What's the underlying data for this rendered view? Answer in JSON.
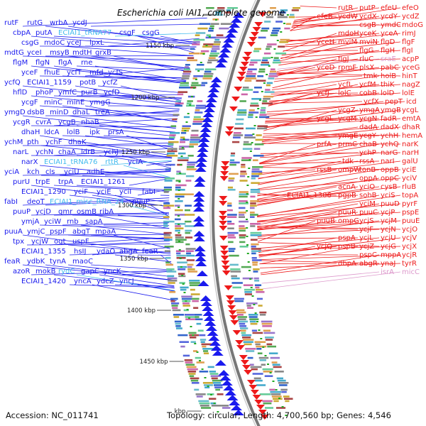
{
  "title": "Escherichia coli IAI1, complete genome",
  "footer": {
    "accession": "Accession: NC_011741",
    "topology": "Topology: circular; Length: 4,700,560 bp; Genes: 4,546"
  },
  "colors": {
    "left_genes": "#1a1aee",
    "right_genes": "#ee1a1a",
    "rna_left": "#44bbee",
    "rna_right": "#dd99cc",
    "backbone": "#888888",
    "ticks": "#22aa22"
  },
  "kbp_marks": [
    {
      "label": "1150 kbp"
    },
    {
      "label": "1200 kbp"
    },
    {
      "label": "1250 kbp"
    },
    {
      "label": "1300 kbp"
    },
    {
      "label": "1350 kbp"
    },
    {
      "label": "1400 kbp"
    },
    {
      "label": "1450 kbp"
    },
    {
      "label": "kbp"
    }
  ],
  "left_labels": [
    {
      "text": "rutF"
    },
    {
      "text": "rutG"
    },
    {
      "text": "wrbA"
    },
    {
      "text": "ycdJ"
    },
    {
      "text": "cbpA"
    },
    {
      "text": "putA"
    },
    {
      "text": "ECIAI1_tRNA77",
      "rna": true
    },
    {
      "text": "csgF"
    },
    {
      "text": "csgG"
    },
    {
      "text": "mdoC"
    },
    {
      "text": "yceJ"
    },
    {
      "text": "lpxL"
    },
    {
      "text": "mdtG"
    },
    {
      "text": "yceI"
    },
    {
      "text": "msyB"
    },
    {
      "text": "mdtH"
    },
    {
      "text": "grxB"
    },
    {
      "text": "flgM"
    },
    {
      "text": "flgN"
    },
    {
      "text": "flgA"
    },
    {
      "text": "rne"
    },
    {
      "text": "yceF"
    },
    {
      "text": "fhuE"
    },
    {
      "text": "ycfT"
    },
    {
      "text": "mfd"
    },
    {
      "text": "ycfS"
    },
    {
      "text": "ycfQ"
    },
    {
      "text": "ECIAI1_1159"
    },
    {
      "text": "potB"
    },
    {
      "text": "ycfZ"
    },
    {
      "text": "hflD"
    },
    {
      "text": "phoP"
    },
    {
      "text": "ymfC"
    },
    {
      "text": "purB"
    },
    {
      "text": "ycfD"
    },
    {
      "text": "ycgF"
    },
    {
      "text": "minC"
    },
    {
      "text": "minE"
    },
    {
      "text": "ymgG"
    },
    {
      "text": "ymgD"
    },
    {
      "text": "dsbB"
    },
    {
      "text": "minD"
    },
    {
      "text": "dhaL"
    },
    {
      "text": "treA"
    },
    {
      "text": "ycgR"
    },
    {
      "text": "cvrA"
    },
    {
      "text": "ycgB"
    },
    {
      "text": "nhaB"
    },
    {
      "text": "dhaH"
    },
    {
      "text": "ldcA"
    },
    {
      "text": "lolB"
    },
    {
      "text": "ipk"
    },
    {
      "text": "prsA"
    },
    {
      "text": "ychM"
    },
    {
      "text": "pth"
    },
    {
      "text": "ychF"
    },
    {
      "text": "dhaK"
    },
    {
      "text": "narL"
    },
    {
      "text": "ychN"
    },
    {
      "text": "chaA"
    },
    {
      "text": "ldrB"
    },
    {
      "text": "ychJ"
    },
    {
      "text": "narX"
    },
    {
      "text": "ECIAI1_tRNA76",
      "rna": true
    },
    {
      "text": "rttR",
      "rna": true
    },
    {
      "text": "yciA"
    },
    {
      "text": "kch"
    },
    {
      "text": "cls"
    },
    {
      "text": "yciU"
    },
    {
      "text": "adhE"
    },
    {
      "text": "purU"
    },
    {
      "text": "trpE"
    },
    {
      "text": "trpA"
    },
    {
      "text": "ECIAI1_1261"
    },
    {
      "text": "ECIAI1_1290"
    },
    {
      "text": "yciF"
    },
    {
      "text": "yciE"
    },
    {
      "text": "yciI"
    },
    {
      "text": "fabI"
    },
    {
      "text": "deoT"
    },
    {
      "text": "ECIAI1_misc_RNA_24",
      "rna": true
    },
    {
      "text": "puuP"
    },
    {
      "text": "ycjD"
    },
    {
      "text": "gmr"
    },
    {
      "text": "osmB"
    },
    {
      "text": "ribA"
    },
    {
      "text": "ymjA"
    },
    {
      "text": "yciW"
    },
    {
      "text": "rnb"
    },
    {
      "text": "sapA"
    },
    {
      "text": "puuA"
    },
    {
      "text": "ymjC"
    },
    {
      "text": "pspF"
    },
    {
      "text": "abgT"
    },
    {
      "text": "mpaA"
    },
    {
      "text": "tpx"
    },
    {
      "text": "ycjW"
    },
    {
      "text": "ogt"
    },
    {
      "text": "uspF"
    },
    {
      "text": "ECIAI1_1355"
    },
    {
      "text": "hsIJ"
    },
    {
      "text": "ydaO"
    },
    {
      "text": "abgA"
    },
    {
      "text": "feaR"
    },
    {
      "text": "ydbK"
    },
    {
      "text": "tynA"
    },
    {
      "text": "maoC"
    },
    {
      "text": "azoR"
    },
    {
      "text": "mokB"
    },
    {
      "text": "rydC",
      "rna": true
    },
    {
      "text": "gapC"
    },
    {
      "text": "yncK"
    },
    {
      "text": "ECIAI1_1420"
    },
    {
      "text": "yncA"
    },
    {
      "text": "ydcZ"
    },
    {
      "text": "yncJ"
    }
  ],
  "right_labels": [
    {
      "text": "rutR"
    },
    {
      "text": "putP"
    },
    {
      "text": "efeU"
    },
    {
      "text": "efeO"
    },
    {
      "text": "efeB"
    },
    {
      "text": "ycdW"
    },
    {
      "text": "ycdX"
    },
    {
      "text": "ycdY"
    },
    {
      "text": "ycdZ"
    },
    {
      "text": "csgB"
    },
    {
      "text": "ymdC"
    },
    {
      "text": "mdoG"
    },
    {
      "text": "mdoH"
    },
    {
      "text": "yceK"
    },
    {
      "text": "yceA"
    },
    {
      "text": "rimJ"
    },
    {
      "text": "yceH"
    },
    {
      "text": "mviM"
    },
    {
      "text": "mviN"
    },
    {
      "text": "flgD"
    },
    {
      "text": "flgF"
    },
    {
      "text": "flgG"
    },
    {
      "text": "flgH"
    },
    {
      "text": "flgI"
    },
    {
      "text": "flgJ"
    },
    {
      "text": "rluC"
    },
    {
      "text": "sraE",
      "rna": true
    },
    {
      "text": "acpP"
    },
    {
      "text": "yceD"
    },
    {
      "text": "rpmF"
    },
    {
      "text": "plsX"
    },
    {
      "text": "pabC"
    },
    {
      "text": "yceG"
    },
    {
      "text": "tmk"
    },
    {
      "text": "holB"
    },
    {
      "text": "hinT"
    },
    {
      "text": "ycfL"
    },
    {
      "text": "ycfM"
    },
    {
      "text": "thiK"
    },
    {
      "text": "nagZ"
    },
    {
      "text": "ycfJ"
    },
    {
      "text": "lolC"
    },
    {
      "text": "cobB"
    },
    {
      "text": "lolD"
    },
    {
      "text": "lolE"
    },
    {
      "text": "ycfX"
    },
    {
      "text": "pepT"
    },
    {
      "text": "icd"
    },
    {
      "text": "ycgZ"
    },
    {
      "text": "ymgA"
    },
    {
      "text": "ymgB"
    },
    {
      "text": "ycgL"
    },
    {
      "text": "ycgL"
    },
    {
      "text": "ycgM"
    },
    {
      "text": "ycgN"
    },
    {
      "text": "fadR"
    },
    {
      "text": "emtA"
    },
    {
      "text": "dadA"
    },
    {
      "text": "dadX"
    },
    {
      "text": "dhaR"
    },
    {
      "text": "ymgE"
    },
    {
      "text": "ycgY"
    },
    {
      "text": "ychH"
    },
    {
      "text": "hemA"
    },
    {
      "text": "prfA"
    },
    {
      "text": "prmC"
    },
    {
      "text": "chaB"
    },
    {
      "text": "ychQ"
    },
    {
      "text": "narK"
    },
    {
      "text": "ychP"
    },
    {
      "text": "narG"
    },
    {
      "text": "narH"
    },
    {
      "text": "tdk"
    },
    {
      "text": "rssA"
    },
    {
      "text": "narI"
    },
    {
      "text": "galU"
    },
    {
      "text": "rssB"
    },
    {
      "text": "ompW"
    },
    {
      "text": "tonB"
    },
    {
      "text": "oppB"
    },
    {
      "text": "yciE"
    },
    {
      "text": "oppA"
    },
    {
      "text": "oppC"
    },
    {
      "text": "yciV"
    },
    {
      "text": "acnA"
    },
    {
      "text": "yciO"
    },
    {
      "text": "cysB"
    },
    {
      "text": "rluB"
    },
    {
      "text": "ECIAI1_1306"
    },
    {
      "text": "pgpB"
    },
    {
      "text": "sohB"
    },
    {
      "text": "yciS"
    },
    {
      "text": "topA"
    },
    {
      "text": "yciM"
    },
    {
      "text": "puuD"
    },
    {
      "text": "pyrF"
    },
    {
      "text": "puuR"
    },
    {
      "text": "puuC"
    },
    {
      "text": "ycjP"
    },
    {
      "text": "pspE"
    },
    {
      "text": "puuB"
    },
    {
      "text": "ompG"
    },
    {
      "text": "ycjS"
    },
    {
      "text": "ycjM"
    },
    {
      "text": "puuE"
    },
    {
      "text": "ycjF"
    },
    {
      "text": "ycjN"
    },
    {
      "text": "ycjO"
    },
    {
      "text": "pspA"
    },
    {
      "text": "ycjL"
    },
    {
      "text": "ycjU"
    },
    {
      "text": "ycjV"
    },
    {
      "text": "ycjQ"
    },
    {
      "text": "pspB"
    },
    {
      "text": "ycjZ"
    },
    {
      "text": "ycjG"
    },
    {
      "text": "ycjX"
    },
    {
      "text": "pspC"
    },
    {
      "text": "mppA"
    },
    {
      "text": "ycjR"
    },
    {
      "text": "dbpA"
    },
    {
      "text": "abgR"
    },
    {
      "text": "ynaJ"
    },
    {
      "text": "tyrR"
    },
    {
      "text": "isrA",
      "rna": true
    },
    {
      "text": "micC",
      "rna": true
    }
  ]
}
